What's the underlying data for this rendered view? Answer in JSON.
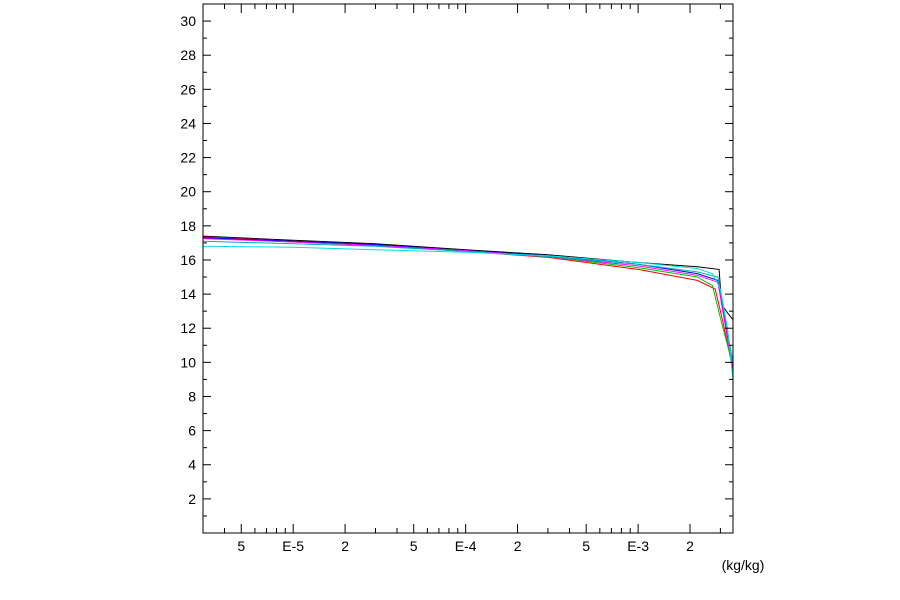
{
  "chart_data": {
    "type": "line",
    "title": "",
    "xlabel": "(kg/kg)",
    "ylabel": "",
    "x_scale": "log",
    "xlim": [
      3e-06,
      0.00355
    ],
    "ylim": [
      0,
      31
    ],
    "grid": false,
    "legend": "none",
    "x_ticks": [
      {
        "value": 5e-06,
        "label": "5"
      },
      {
        "value": 1e-05,
        "label": "E-5"
      },
      {
        "value": 2e-05,
        "label": "2"
      },
      {
        "value": 5e-05,
        "label": "5"
      },
      {
        "value": 0.0001,
        "label": "E-4"
      },
      {
        "value": 0.0002,
        "label": "2"
      },
      {
        "value": 0.0005,
        "label": "5"
      },
      {
        "value": 0.001,
        "label": "E-3"
      },
      {
        "value": 0.002,
        "label": "2"
      }
    ],
    "y_ticks": [
      {
        "value": 2,
        "label": "2"
      },
      {
        "value": 4,
        "label": "4"
      },
      {
        "value": 6,
        "label": "6"
      },
      {
        "value": 8,
        "label": "8"
      },
      {
        "value": 10,
        "label": "10"
      },
      {
        "value": 12,
        "label": "12"
      },
      {
        "value": 14,
        "label": "14"
      },
      {
        "value": 16,
        "label": "16"
      },
      {
        "value": 18,
        "label": "18"
      },
      {
        "value": 20,
        "label": "20"
      },
      {
        "value": 22,
        "label": "22"
      },
      {
        "value": 24,
        "label": "24"
      },
      {
        "value": 26,
        "label": "26"
      },
      {
        "value": 28,
        "label": "28"
      },
      {
        "value": 30,
        "label": "30"
      }
    ],
    "series": [
      {
        "color": "#000000",
        "points": [
          [
            3e-06,
            17.4
          ],
          [
            1e-05,
            17.15
          ],
          [
            3e-05,
            16.95
          ],
          [
            0.0001,
            16.6
          ],
          [
            0.0003,
            16.3
          ],
          [
            0.001,
            15.85
          ],
          [
            0.0022,
            15.6
          ],
          [
            0.00295,
            15.45
          ],
          [
            0.00305,
            13.4
          ],
          [
            0.0033,
            12.9
          ],
          [
            0.00355,
            12.5
          ]
        ]
      },
      {
        "color": "#ff0000",
        "points": [
          [
            3e-06,
            17.35
          ],
          [
            1e-05,
            17.1
          ],
          [
            3e-05,
            16.85
          ],
          [
            0.0001,
            16.5
          ],
          [
            0.0003,
            16.15
          ],
          [
            0.001,
            15.45
          ],
          [
            0.0022,
            14.8
          ],
          [
            0.0028,
            14.3
          ],
          [
            0.0031,
            12.4
          ],
          [
            0.0033,
            11.1
          ],
          [
            0.00355,
            9.5
          ]
        ]
      },
      {
        "color": "#00c000",
        "points": [
          [
            3e-06,
            17.3
          ],
          [
            1e-05,
            17.05
          ],
          [
            3e-05,
            16.85
          ],
          [
            0.0001,
            16.5
          ],
          [
            0.0003,
            16.2
          ],
          [
            0.001,
            15.55
          ],
          [
            0.0022,
            15.0
          ],
          [
            0.0027,
            14.5
          ],
          [
            0.003,
            12.6
          ],
          [
            0.0033,
            11.0
          ],
          [
            0.00355,
            9.8
          ]
        ]
      },
      {
        "color": "#0000ff",
        "points": [
          [
            3e-06,
            17.3
          ],
          [
            1e-05,
            17.1
          ],
          [
            3e-05,
            16.9
          ],
          [
            0.0001,
            16.55
          ],
          [
            0.0003,
            16.25
          ],
          [
            0.001,
            15.75
          ],
          [
            0.0022,
            15.2
          ],
          [
            0.0029,
            14.8
          ],
          [
            0.0031,
            13.2
          ],
          [
            0.0033,
            11.5
          ],
          [
            0.00355,
            9.6
          ]
        ]
      },
      {
        "color": "#ff00ff",
        "points": [
          [
            3e-06,
            17.25
          ],
          [
            1e-05,
            17.05
          ],
          [
            3e-05,
            16.85
          ],
          [
            0.0001,
            16.55
          ],
          [
            0.0003,
            16.2
          ],
          [
            0.001,
            15.65
          ],
          [
            0.0022,
            15.1
          ],
          [
            0.0029,
            14.7
          ],
          [
            0.0031,
            13.0
          ],
          [
            0.0033,
            11.4
          ],
          [
            0.00355,
            9.7
          ]
        ]
      },
      {
        "color": "#00b0b0",
        "points": [
          [
            3e-06,
            17.1
          ],
          [
            1e-05,
            16.95
          ],
          [
            3e-05,
            16.8
          ],
          [
            0.0001,
            16.5
          ],
          [
            0.0003,
            16.2
          ],
          [
            0.001,
            15.75
          ],
          [
            0.0022,
            15.3
          ],
          [
            0.0029,
            15.0
          ],
          [
            0.0031,
            13.4
          ],
          [
            0.0033,
            11.8
          ],
          [
            0.00355,
            10.0
          ]
        ]
      },
      {
        "color": "#00e0e0",
        "points": [
          [
            3e-06,
            16.8
          ],
          [
            1e-05,
            16.75
          ],
          [
            3e-05,
            16.6
          ],
          [
            0.0001,
            16.45
          ],
          [
            0.0003,
            16.25
          ],
          [
            0.001,
            15.85
          ],
          [
            0.0022,
            15.5
          ],
          [
            0.0027,
            15.2
          ],
          [
            0.003,
            14.3
          ],
          [
            0.0033,
            12.0
          ],
          [
            0.00355,
            9.0
          ]
        ]
      }
    ]
  }
}
